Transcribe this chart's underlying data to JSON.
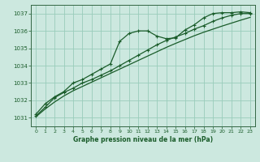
{
  "title": "Graphe pression niveau de la mer (hPa)",
  "bg_color": "#cce8df",
  "grid_color": "#99ccbb",
  "line_color": "#1a5c2a",
  "spine_color": "#336644",
  "xlim": [
    -0.5,
    23.5
  ],
  "ylim": [
    1030.5,
    1037.5
  ],
  "xticks": [
    0,
    1,
    2,
    3,
    4,
    5,
    6,
    7,
    8,
    9,
    10,
    11,
    12,
    13,
    14,
    15,
    16,
    17,
    18,
    19,
    20,
    21,
    22,
    23
  ],
  "yticks": [
    1031,
    1032,
    1033,
    1034,
    1035,
    1036,
    1037
  ],
  "series": [
    {
      "x": [
        0,
        1,
        2,
        3,
        4,
        5,
        6,
        7,
        8,
        9,
        10,
        11,
        12,
        13,
        14,
        15,
        16,
        17,
        18,
        19,
        20,
        21,
        22,
        23
      ],
      "y": [
        1031.2,
        1031.8,
        1032.2,
        1032.5,
        1033.0,
        1033.2,
        1033.5,
        1033.8,
        1034.1,
        1035.4,
        1035.85,
        1036.0,
        1036.0,
        1035.7,
        1035.55,
        1035.6,
        1036.05,
        1036.35,
        1036.75,
        1037.0,
        1037.05,
        1037.05,
        1037.1,
        1037.05
      ],
      "marker": true,
      "linewidth": 0.9
    },
    {
      "x": [
        0,
        1,
        2,
        3,
        4,
        5,
        6,
        7,
        8,
        9,
        10,
        11,
        12,
        13,
        14,
        15,
        16,
        17,
        18,
        19,
        20,
        21,
        22,
        23
      ],
      "y": [
        1031.05,
        1031.5,
        1031.9,
        1032.25,
        1032.55,
        1032.8,
        1033.05,
        1033.3,
        1033.55,
        1033.8,
        1034.05,
        1034.3,
        1034.55,
        1034.8,
        1035.05,
        1035.28,
        1035.5,
        1035.72,
        1035.92,
        1036.1,
        1036.28,
        1036.45,
        1036.62,
        1036.78
      ],
      "marker": false,
      "linewidth": 0.9
    },
    {
      "x": [
        0,
        1,
        2,
        3,
        4,
        5,
        6,
        7,
        8,
        9,
        10,
        11,
        12,
        13,
        14,
        15,
        16,
        17,
        18,
        19,
        20,
        21,
        22,
        23
      ],
      "y": [
        1031.1,
        1031.6,
        1032.15,
        1032.45,
        1032.7,
        1033.0,
        1033.2,
        1033.45,
        1033.7,
        1034.0,
        1034.3,
        1034.6,
        1034.9,
        1035.2,
        1035.45,
        1035.65,
        1035.85,
        1036.1,
        1036.3,
        1036.55,
        1036.75,
        1036.9,
        1037.0,
        1037.0
      ],
      "marker": true,
      "linewidth": 0.9
    }
  ]
}
